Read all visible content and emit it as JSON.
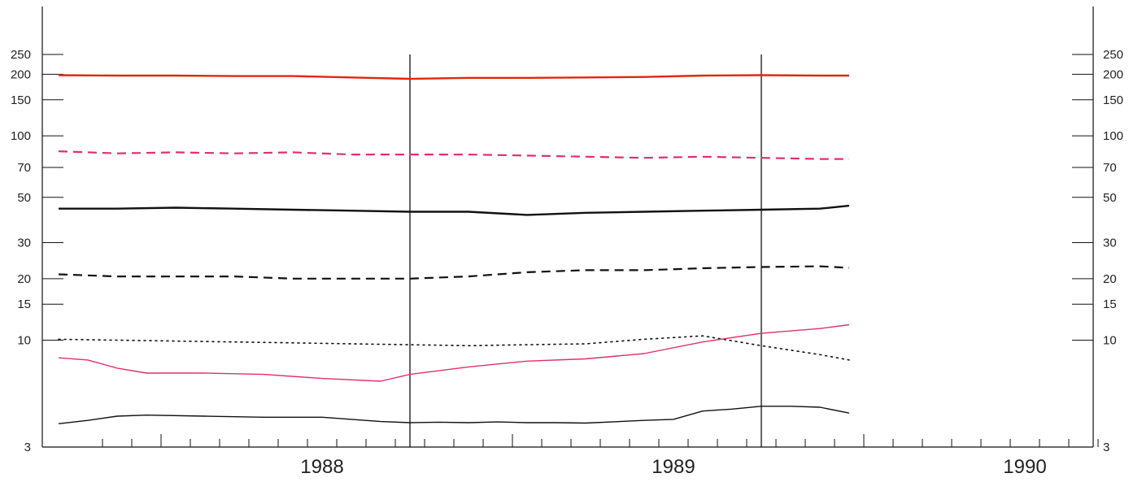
{
  "chart_data": {
    "type": "line",
    "title": "",
    "xlabel": "",
    "ylabel": "",
    "y_scale": "log",
    "ylim": [
      3,
      300
    ],
    "grid": false,
    "legend": "none",
    "y_ticks_left": [
      250,
      200,
      150,
      100,
      70,
      50,
      30,
      20,
      15,
      10,
      3
    ],
    "y_ticks_right": [
      250,
      200,
      150,
      100,
      70,
      50,
      30,
      20,
      15,
      10,
      3
    ],
    "x_period_labels": [
      "1988",
      "1989",
      "1990"
    ],
    "x_range_months": [
      "1987-10",
      "1990-09"
    ],
    "x_minor_ticks_months": [
      "1987-11",
      "1987-12",
      "1988-01",
      "1988-02",
      "1988-03",
      "1988-04",
      "1988-05",
      "1988-06",
      "1988-07",
      "1988-08",
      "1988-09",
      "1988-10",
      "1988-11",
      "1988-12",
      "1989-01",
      "1989-02",
      "1989-03",
      "1989-04",
      "1989-05",
      "1989-06",
      "1989-07",
      "1989-08",
      "1989-09",
      "1989-10",
      "1989-11",
      "1989-12",
      "1990-01",
      "1990-02",
      "1990-03",
      "1990-04",
      "1990-05",
      "1990-06",
      "1990-07",
      "1990-08",
      "1990-09"
    ],
    "reference_lines_months": [
      "1988-10",
      "1989-10"
    ],
    "series": [
      {
        "color": "#e02810",
        "style": "solid",
        "width": 2.4,
        "x": [
          "1987-10",
          "1987-12",
          "1988-02",
          "1988-04",
          "1988-06",
          "1988-08",
          "1988-10",
          "1988-12",
          "1989-02",
          "1989-04",
          "1989-06",
          "1989-08",
          "1989-10",
          "1989-12",
          "1990-01"
        ],
        "values": [
          198,
          197,
          197,
          196,
          196,
          193,
          190,
          192,
          192,
          193,
          194,
          197,
          198,
          197,
          197
        ]
      },
      {
        "color": "#e0306a",
        "style": "dashed",
        "width": 2.2,
        "x": [
          "1987-10",
          "1987-12",
          "1988-02",
          "1988-04",
          "1988-06",
          "1988-08",
          "1988-10",
          "1988-12",
          "1989-02",
          "1989-04",
          "1989-06",
          "1989-08",
          "1989-10",
          "1989-12",
          "1990-01"
        ],
        "values": [
          84,
          82,
          83,
          82,
          83,
          81,
          81,
          81,
          80,
          79,
          78,
          79,
          78,
          77,
          77
        ]
      },
      {
        "color": "#111111",
        "style": "solid",
        "width": 2.4,
        "x": [
          "1987-10",
          "1987-12",
          "1988-02",
          "1988-04",
          "1988-06",
          "1988-08",
          "1988-10",
          "1988-12",
          "1989-02",
          "1989-04",
          "1989-06",
          "1989-08",
          "1989-10",
          "1989-12",
          "1990-01"
        ],
        "values": [
          44,
          44,
          44.5,
          44,
          43.5,
          43,
          42.5,
          42.5,
          41,
          42,
          42.5,
          43,
          43.5,
          44,
          45.5
        ]
      },
      {
        "color": "#111111",
        "style": "dashed",
        "width": 2.2,
        "x": [
          "1987-10",
          "1987-12",
          "1988-02",
          "1988-04",
          "1988-06",
          "1988-08",
          "1988-10",
          "1988-12",
          "1989-02",
          "1989-04",
          "1989-06",
          "1989-08",
          "1989-10",
          "1989-12",
          "1990-01"
        ],
        "values": [
          21,
          20.5,
          20.5,
          20.5,
          20,
          20,
          20,
          20.5,
          21.5,
          22,
          22,
          22.5,
          22.8,
          23,
          22.6
        ]
      },
      {
        "color": "#111111",
        "style": "dotted",
        "width": 1.6,
        "x": [
          "1987-10",
          "1987-12",
          "1988-02",
          "1988-04",
          "1988-06",
          "1988-08",
          "1988-10",
          "1988-12",
          "1989-02",
          "1989-04",
          "1989-06",
          "1989-08",
          "1989-10",
          "1989-12",
          "1990-01"
        ],
        "values": [
          10.1,
          10,
          9.9,
          9.8,
          9.7,
          9.6,
          9.5,
          9.4,
          9.5,
          9.6,
          10.1,
          10.5,
          9.4,
          8.5,
          8.0
        ]
      },
      {
        "color": "#e0306a",
        "style": "solid",
        "width": 1.4,
        "x": [
          "1987-10",
          "1987-11",
          "1987-12",
          "1988-01",
          "1988-03",
          "1988-05",
          "1988-07",
          "1988-09",
          "1988-10",
          "1988-12",
          "1989-02",
          "1989-04",
          "1989-06",
          "1989-08",
          "1989-10",
          "1989-12",
          "1990-01"
        ],
        "values": [
          8.2,
          8.0,
          7.3,
          6.9,
          6.9,
          6.8,
          6.5,
          6.3,
          6.8,
          7.4,
          7.9,
          8.1,
          8.6,
          9.8,
          10.8,
          11.4,
          11.9
        ]
      },
      {
        "color": "#111111",
        "style": "solid",
        "width": 1.4,
        "x": [
          "1987-10",
          "1987-11",
          "1987-12",
          "1988-01",
          "1988-03",
          "1988-05",
          "1988-07",
          "1988-08",
          "1988-09",
          "1988-10",
          "1988-11",
          "1988-12",
          "1989-01",
          "1989-02",
          "1989-03",
          "1989-04",
          "1989-06",
          "1989-07",
          "1989-08",
          "1989-09",
          "1989-10",
          "1989-11",
          "1989-12",
          "1990-01"
        ],
        "values": [
          3.9,
          4.05,
          4.25,
          4.3,
          4.25,
          4.2,
          4.2,
          4.1,
          4.0,
          3.95,
          3.97,
          3.95,
          3.98,
          3.95,
          3.95,
          3.93,
          4.05,
          4.1,
          4.5,
          4.6,
          4.75,
          4.75,
          4.7,
          4.4
        ]
      }
    ]
  }
}
